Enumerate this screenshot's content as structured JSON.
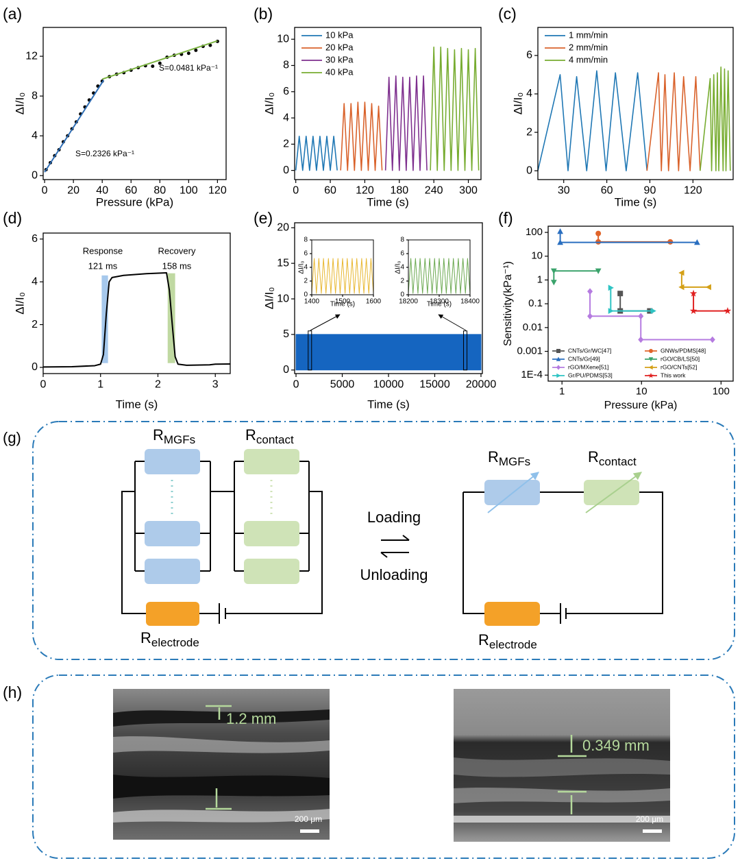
{
  "chart_data": [
    {
      "type": "scatter",
      "panel_label": "(a)",
      "xlabel": "Pressure (kPa)",
      "ylabel": "ΔI/I₀",
      "xlim": [
        -1,
        126
      ],
      "ylim": [
        -0.4,
        14.9
      ],
      "xticks": [
        0,
        20,
        40,
        60,
        80,
        100,
        120
      ],
      "yticks": [
        0,
        4,
        8,
        12
      ],
      "series": [
        {
          "marker": "circle",
          "color": "#000000",
          "line": false,
          "x": [
            1,
            4,
            7,
            10,
            13,
            16,
            19,
            22,
            25,
            28,
            31,
            34,
            37,
            40,
            45,
            50,
            55,
            60,
            65,
            70,
            75,
            80,
            85,
            90,
            95,
            100,
            105,
            110,
            115,
            120
          ],
          "values": [
            0.6,
            1.3,
            2.0,
            2.6,
            3.4,
            4.0,
            4.7,
            5.4,
            6.2,
            6.9,
            7.6,
            8.3,
            9.0,
            9.5,
            9.95,
            10.2,
            10.35,
            10.6,
            10.85,
            11.05,
            11.0,
            11.3,
            11.9,
            12.1,
            12.2,
            12.3,
            12.6,
            13.0,
            13.1,
            13.5
          ]
        },
        {
          "marker": "none",
          "color": "#2e6db4",
          "line": true,
          "x": [
            0,
            41
          ],
          "values": [
            0.35,
            9.6
          ]
        },
        {
          "marker": "none",
          "color": "#7cb342",
          "line": true,
          "x": [
            40,
            120
          ],
          "values": [
            9.7,
            13.55
          ]
        }
      ],
      "annotations": [
        "S=0.0481 kPa⁻¹",
        "S=0.2326 kPa⁻¹"
      ]
    },
    {
      "type": "line",
      "panel_label": "(b)",
      "xlabel": "Time (s)",
      "ylabel": "ΔI/I₀",
      "xlim": [
        -2,
        322
      ],
      "ylim": [
        -0.7,
        10.9
      ],
      "xticks": [
        0,
        60,
        120,
        180,
        240,
        300
      ],
      "yticks": [
        0,
        2,
        4,
        6,
        8,
        10
      ],
      "legend": "upper left",
      "series": [
        {
          "name": "10 kPa",
          "color": "#1f77b4",
          "x": [
            0,
            6,
            12,
            18,
            24,
            30,
            36,
            42,
            48,
            54,
            60,
            66,
            72
          ],
          "values": [
            0,
            2.6,
            0,
            2.6,
            0,
            2.6,
            0,
            2.6,
            0,
            2.6,
            0,
            2.6,
            0
          ]
        },
        {
          "name": "20 kPa",
          "color": "#d9622b",
          "x": [
            78,
            84,
            90,
            96,
            102,
            108,
            114,
            120,
            126,
            132,
            138,
            144,
            150
          ],
          "values": [
            0,
            5.1,
            0,
            5.1,
            0,
            5.2,
            0,
            5.2,
            0,
            5.1,
            0,
            4.9,
            0
          ]
        },
        {
          "name": "30 kPa",
          "color": "#7e2f8e",
          "x": [
            156,
            162,
            168,
            174,
            180,
            186,
            192,
            198,
            204,
            210,
            216,
            222,
            228
          ],
          "values": [
            0,
            7.1,
            0,
            7.2,
            0,
            7.1,
            0,
            7.1,
            0,
            7.2,
            0,
            7.2,
            0
          ]
        },
        {
          "name": "40 kPa",
          "color": "#77ac30",
          "x": [
            234,
            240,
            246,
            252,
            258,
            264,
            270,
            276,
            282,
            288,
            294,
            300,
            306,
            312,
            318
          ],
          "values": [
            0,
            9.4,
            0,
            9.4,
            0,
            9.3,
            0,
            9.2,
            0,
            9.3,
            0,
            9.2,
            0,
            9.3,
            0
          ]
        }
      ]
    },
    {
      "type": "line",
      "panel_label": "(c)",
      "xlabel": "Time (s)",
      "ylabel": "ΔI/I₀",
      "xlim": [
        12,
        148
      ],
      "ylim": [
        -0.46,
        7.46
      ],
      "xticks": [
        30,
        60,
        90,
        120
      ],
      "yticks": [
        0,
        2,
        4,
        6
      ],
      "legend": "upper left",
      "series": [
        {
          "name": "1 mm/min",
          "color": "#1f77b4",
          "x": [
            12,
            27.5,
            33,
            39,
            46,
            53,
            59.5,
            66,
            73.5,
            81.5,
            88
          ],
          "values": [
            0,
            5.0,
            0,
            4.9,
            0,
            5.2,
            0,
            5.1,
            0,
            5.1,
            0
          ]
        },
        {
          "name": "2 mm/min",
          "color": "#d9622b",
          "x": [
            88,
            96,
            98,
            100.5,
            103,
            107,
            110,
            113.5,
            118,
            122,
            125
          ],
          "values": [
            0,
            5.1,
            0,
            5.0,
            0,
            5.1,
            0,
            4.9,
            0,
            4.9,
            0
          ]
        },
        {
          "name": "4 mm/min",
          "color": "#77ac30",
          "x": [
            125,
            132,
            133,
            134.5,
            136,
            137,
            138,
            139.5,
            141,
            142,
            143,
            144.5,
            146
          ],
          "values": [
            0,
            4.8,
            0,
            5.0,
            0,
            5.1,
            0,
            5.4,
            0,
            5.3,
            0,
            5.2,
            0
          ]
        }
      ]
    },
    {
      "type": "line",
      "panel_label": "(d)",
      "xlabel": "Time (s)",
      "ylabel": "ΔI/I₀",
      "xlim": [
        0,
        3.26
      ],
      "ylim": [
        -0.29,
        6.28
      ],
      "xticks": [
        0,
        1,
        2,
        3
      ],
      "yticks": [
        0,
        2,
        4,
        6
      ],
      "shaded": [
        {
          "x": [
            1.02,
            1.13
          ],
          "y": [
            0.2,
            4.3
          ],
          "color": "#a6c8ec"
        },
        {
          "x": [
            2.17,
            2.3
          ],
          "y": [
            0.2,
            4.4
          ],
          "color": "#c0d9a2"
        }
      ],
      "series": [
        {
          "color": "#000000",
          "x": [
            0,
            0.5,
            0.9,
            1.0,
            1.05,
            1.1,
            1.15,
            1.2,
            1.4,
            1.8,
            2.15,
            2.2,
            2.25,
            2.3,
            2.35,
            2.5,
            2.9,
            3.0,
            3.26
          ],
          "values": [
            0.02,
            0.03,
            0.08,
            0.15,
            0.6,
            2.5,
            4.0,
            4.2,
            4.3,
            4.38,
            4.42,
            3.6,
            2.0,
            0.5,
            0.15,
            0.1,
            0.12,
            0.15,
            0.16
          ]
        }
      ],
      "annotations": [
        "Response",
        "121 ms",
        "Recovery",
        "158 ms"
      ]
    },
    {
      "type": "area",
      "panel_label": "(e)",
      "xlabel": "Time (s)",
      "ylabel": "ΔI/I₀",
      "xlim": [
        -150,
        20150
      ],
      "ylim": [
        -0.5,
        20.7
      ],
      "xticks": [
        0,
        5000,
        10000,
        15000,
        20000
      ],
      "yticks": [
        0,
        5,
        10,
        15,
        20
      ],
      "zoom_boxes": [
        {
          "x": [
            1400,
            1600
          ],
          "y": [
            0,
            5.5
          ]
        },
        {
          "x": [
            18200,
            18400
          ],
          "y": [
            0,
            5.5
          ]
        }
      ],
      "series": [
        {
          "color": "#1565c0",
          "x": [
            0,
            20000
          ],
          "values": [
            5,
            5
          ]
        }
      ]
    },
    {
      "type": "line",
      "xlabel": "Time (s)",
      "ylabel": "ΔI/I₀",
      "xlim": [
        1400,
        1600
      ],
      "ylim": [
        0,
        8
      ],
      "xticks": [
        1400,
        1500,
        1600
      ],
      "yticks": [
        0,
        2,
        4,
        6,
        8
      ],
      "series": [
        {
          "color": "#e8b730",
          "x": [
            1400,
            1408,
            1415,
            1423,
            1431,
            1438,
            1446,
            1454,
            1462,
            1469,
            1477,
            1485,
            1492,
            1500,
            1508,
            1515,
            1523,
            1531,
            1538,
            1546,
            1554,
            1562,
            1569,
            1577,
            1585,
            1592,
            1600
          ],
          "values": [
            0.2,
            5.3,
            0.2,
            5.3,
            0.2,
            5.3,
            0.2,
            5.3,
            0.2,
            5.3,
            0.2,
            5.3,
            0.2,
            5.3,
            0.2,
            5.3,
            0.2,
            5.3,
            0.2,
            5.3,
            0.2,
            5.3,
            0.2,
            5.3,
            0.2,
            5.3,
            0.2
          ]
        }
      ]
    },
    {
      "type": "line",
      "xlabel": "Time (s)",
      "ylabel": "ΔI/I₀",
      "xlim": [
        18200,
        18400
      ],
      "ylim": [
        0,
        8
      ],
      "xticks": [
        18200,
        18300,
        18400
      ],
      "yticks": [
        0,
        2,
        4,
        6,
        8
      ],
      "series": [
        {
          "color": "#6aa84f",
          "x": [
            18200,
            18208,
            18215,
            18223,
            18231,
            18238,
            18246,
            18254,
            18262,
            18269,
            18277,
            18285,
            18292,
            18300,
            18308,
            18315,
            18323,
            18331,
            18338,
            18346,
            18354,
            18362,
            18369,
            18377,
            18385,
            18392,
            18400
          ],
          "values": [
            0.2,
            5.3,
            0.2,
            5.3,
            0.2,
            5.3,
            0.2,
            5.3,
            0.2,
            5.3,
            0.2,
            5.3,
            0.2,
            5.3,
            0.2,
            5.3,
            0.2,
            5.3,
            0.2,
            5.3,
            0.2,
            5.3,
            0.2,
            5.3,
            0.2,
            5.3,
            0.2
          ]
        }
      ]
    },
    {
      "type": "scatter",
      "panel_label": "(f)",
      "xlabel": "Pressure (kPa)",
      "ylabel": "Sensitivity(kPa⁻¹)",
      "log_x": true,
      "log_y": true,
      "xlim": [
        0.67,
        142
      ],
      "ylim": [
        5.6e-05,
        182
      ],
      "xticks": [
        1,
        10,
        100
      ],
      "yticks": [
        {
          "value": 0.0001,
          "label": "1E-4"
        },
        0.001,
        0.01,
        0.1,
        1,
        10,
        100
      ],
      "legend": "lower center",
      "legend_columns": 2,
      "series": [
        {
          "name": "CNTs/Gr/WC[47]",
          "marker": "square",
          "color": "#555555",
          "line": true,
          "x": [
            5.4,
            5.4,
            12.7
          ],
          "values": [
            0.27,
            0.05,
            0.05
          ]
        },
        {
          "name": "GNWs/PDMS[48]",
          "marker": "circle",
          "color": "#e0642a",
          "line": true,
          "x": [
            2.86,
            2.86,
            23
          ],
          "values": [
            90,
            40,
            40
          ]
        },
        {
          "name": "CNTs/Gr[49]",
          "marker": "triangle-up",
          "color": "#2a6fc0",
          "line": true,
          "x": [
            0.95,
            0.95,
            50
          ],
          "values": [
            110,
            38,
            38
          ]
        },
        {
          "name": "rGO/CB/LS[50]",
          "marker": "triangle-down",
          "color": "#3aa36b",
          "line": true,
          "x": [
            2.86,
            0.79,
            0.79
          ],
          "values": [
            2.4,
            2.4,
            0.8
          ]
        },
        {
          "name": "rGO/MXene[51]",
          "marker": "diamond",
          "color": "#b57be0",
          "line": true,
          "x": [
            2.25,
            2.25,
            9.8,
            9.8,
            78
          ],
          "values": [
            0.33,
            0.03,
            0.03,
            0.0031,
            0.0031
          ]
        },
        {
          "name": "rGO/CNTs[52]",
          "marker": "triangle-left",
          "color": "#d4a017",
          "line": true,
          "x": [
            32,
            32,
            70
          ],
          "values": [
            2.0,
            0.5,
            0.5
          ]
        },
        {
          "name": "Gr/PU/PDMS[53]",
          "marker": "triangle-right",
          "color": "#2ec4c4",
          "line": true,
          "x": [
            4.1,
            4.1,
            14
          ],
          "values": [
            0.47,
            0.05,
            0.05
          ]
        },
        {
          "name": "This work",
          "marker": "star",
          "color": "#e02020",
          "line": true,
          "x": [
            45,
            45,
            121
          ],
          "values": [
            0.27,
            0.05,
            0.05
          ]
        }
      ]
    }
  ],
  "diagram": {
    "panel_label": "(g)",
    "resistors": [
      {
        "symbol": "R",
        "subscript": "MGFs"
      },
      {
        "symbol": "R",
        "subscript": "contact"
      },
      {
        "symbol": "R",
        "subscript": "electrode"
      }
    ],
    "loading": "Loading",
    "unloading": "Unloading"
  },
  "images": {
    "panel_label": "(h)",
    "left": {
      "thickness": "1.2 mm",
      "scale_bar": "200 μm"
    },
    "right": {
      "thickness": "0.349 mm",
      "scale_bar": "200 μm"
    }
  }
}
